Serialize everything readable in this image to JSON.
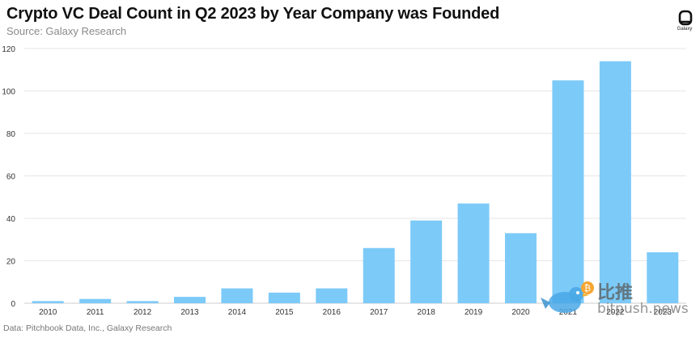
{
  "header": {
    "title": "Crypto VC Deal Count in Q2 2023 by Year Company was Founded",
    "subtitle": "Source: Galaxy Research"
  },
  "footer": {
    "note": "Data: Pitchbook Data, Inc., Galaxy Research"
  },
  "logo": {
    "icon": "galaxy-logo-icon",
    "label": "Galaxy"
  },
  "watermark": {
    "cn": "比推",
    "en": "bitpush.news",
    "icon": "bird-icon"
  },
  "colors": {
    "bar": "#7ccaf8",
    "grid": "#e6e6e6",
    "axis": "#cccccc",
    "tick_text": "#333333"
  },
  "chart_data": {
    "type": "bar",
    "categories": [
      "2010",
      "2011",
      "2012",
      "2013",
      "2014",
      "2015",
      "2016",
      "2017",
      "2018",
      "2019",
      "2020",
      "2021",
      "2022",
      "2023"
    ],
    "values": [
      1,
      2,
      1,
      3,
      7,
      5,
      7,
      26,
      39,
      47,
      33,
      105,
      114,
      24
    ],
    "title": "Crypto VC Deal Count in Q2 2023 by Year Company was Founded",
    "xlabel": "",
    "ylabel": "",
    "ylim": [
      0,
      120
    ],
    "yticks": [
      0,
      20,
      40,
      60,
      80,
      100,
      120
    ],
    "grid": true,
    "legend": "none"
  }
}
